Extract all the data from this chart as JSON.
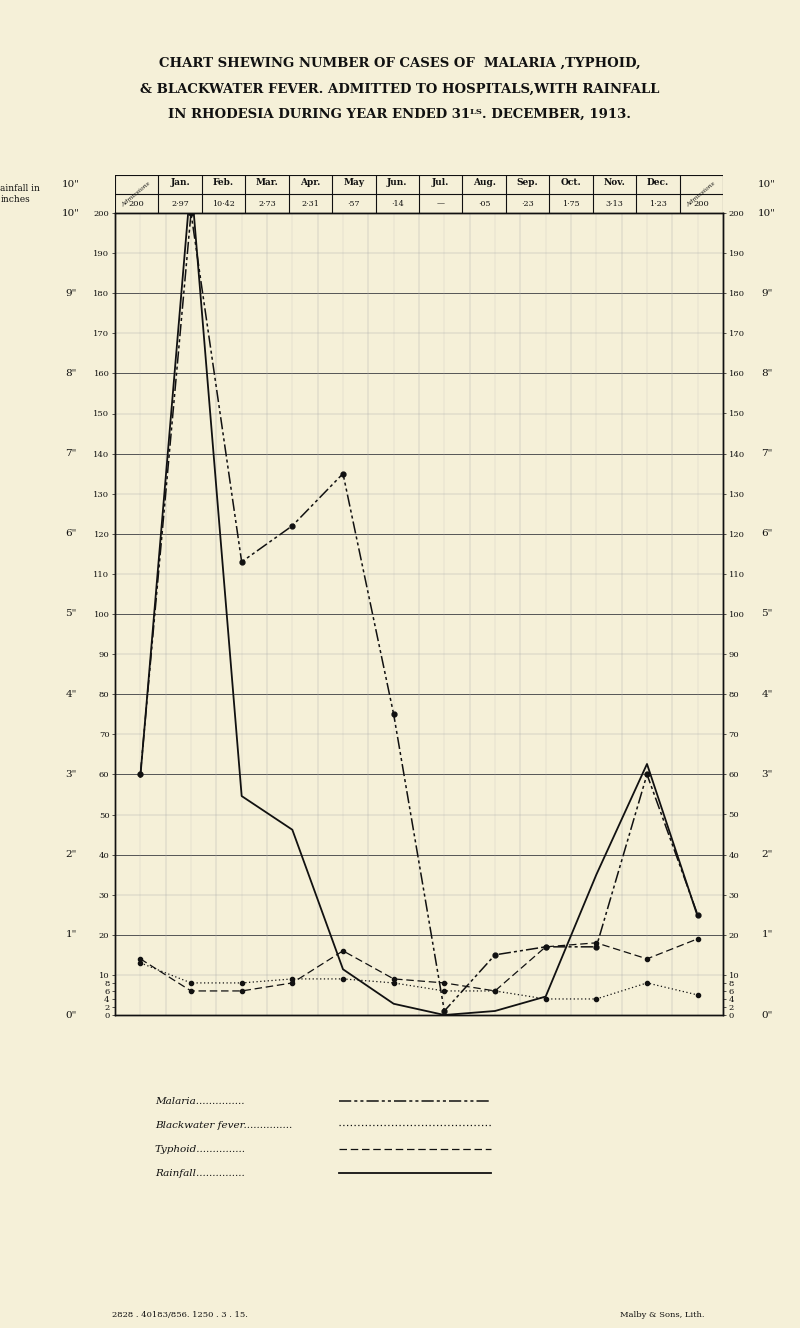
{
  "title_line1": "CHART SHEWING NUMBER OF CASES OF  MALARIA ,TYPHOID,",
  "title_line2": "& BLACKWATER FEVER. ADMITTED TO HOSPITALS,WITH RAINFALL",
  "title_line3": "IN RHODESIA DURING YEAR ENDED 31ᴸᵀ. DECEMBER, 1913.",
  "months": [
    "Jan.",
    "Feb.",
    "Mar.",
    "Apr.",
    "May",
    "Jun.",
    "Jul.",
    "Aug.",
    "Sep.",
    "Oct.",
    "Nov.",
    "Dec."
  ],
  "rainfall_inches": [
    "2·97",
    "10·42",
    "2·73",
    "2·31",
    "·57",
    "·14",
    "—",
    "·05",
    "·23",
    "1·75",
    "3·13",
    "1·23"
  ],
  "rainfall_values": [
    2.97,
    10.42,
    2.73,
    2.31,
    0.57,
    0.14,
    0.0,
    0.05,
    0.23,
    1.75,
    3.13,
    1.23
  ],
  "malaria": [
    60,
    200,
    113,
    122,
    135,
    75,
    1,
    15,
    17,
    17,
    60,
    25
  ],
  "blackwater": [
    13,
    8,
    8,
    9,
    9,
    8,
    6,
    6,
    4,
    4,
    8,
    5
  ],
  "typhoid": [
    14,
    6,
    6,
    8,
    16,
    9,
    8,
    6,
    17,
    18,
    14,
    19
  ],
  "rainfall_scale": 20,
  "background_color": "#f5f0d8",
  "grid_color_minor": "#aaaaaa",
  "grid_color_major": "#555555",
  "line_color": "#111111",
  "footer_left": "2828 . 40183/856. 1250 . 3 . 15.",
  "footer_right": "Malby & Sons, Lith."
}
